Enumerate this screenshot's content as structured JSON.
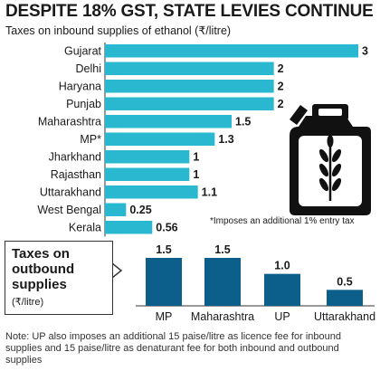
{
  "title": "DESPITE 18% GST, STATE LEVIES CONTINUE",
  "subtitle": "Taxes on inbound supplies of ethanol (₹/litre)",
  "footnote": "*Imposes an additional 1% entry tax",
  "outbound_box": {
    "title": "Taxes on outbound supplies",
    "unit": "(₹/litre)"
  },
  "note": "Note: UP also imposes an additional 15 paise/litre as licence fee for inbound supplies and 15 paise/litre as denaturant fee for both inbound and outbound supplies",
  "icon": "ethanol-jerrycan-wheat-icon",
  "colors": {
    "inbound_bar": "#29b8d0",
    "outbound_bar": "#0b5f8a"
  },
  "chart_data": [
    {
      "type": "bar",
      "orientation": "horizontal",
      "title": "Taxes on inbound supplies of ethanol (₹/litre)",
      "categories": [
        "Gujarat",
        "Delhi",
        "Haryana",
        "Punjab",
        "Maharashtra",
        "MP*",
        "Jharkhand",
        "Rajasthan",
        "Uttarakhand",
        "West Bengal",
        "Kerala"
      ],
      "values": [
        3,
        2,
        2,
        2,
        1.5,
        1.3,
        1,
        1,
        1.1,
        0.25,
        0.56
      ],
      "labels": [
        "3",
        "2",
        "2",
        "2",
        "1.5",
        "1.3",
        "1",
        "1",
        "1.1",
        "0.25",
        "0.56"
      ],
      "xlim": [
        0,
        3
      ]
    },
    {
      "type": "bar",
      "orientation": "vertical",
      "title": "Taxes on outbound supplies",
      "ylabel": "(₹/litre)",
      "categories": [
        "MP",
        "Maharashtra",
        "UP",
        "Uttarakhand"
      ],
      "values": [
        1.5,
        1.5,
        1.0,
        0.5
      ],
      "labels": [
        "1.5",
        "1.5",
        "1.0",
        "0.5"
      ],
      "ylim": [
        0,
        1.5
      ]
    }
  ]
}
